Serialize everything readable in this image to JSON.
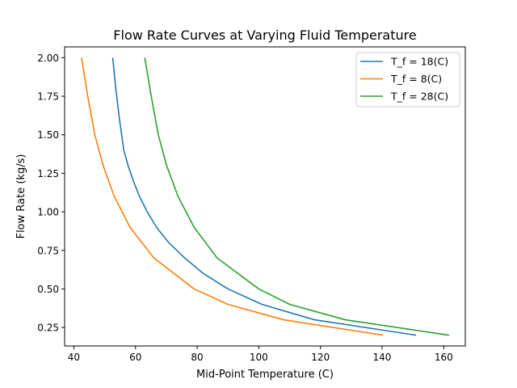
{
  "chart_data": {
    "type": "line",
    "title": "Flow Rate Curves at Varying Fluid Temperature",
    "xlabel": "Mid-Point Temperature (C)",
    "ylabel": "Flow Rate (kg/s)",
    "xlim": [
      37,
      167
    ],
    "ylim": [
      0.13,
      2.07
    ],
    "xticks": [
      40,
      60,
      80,
      100,
      120,
      140,
      160
    ],
    "xtick_labels": [
      "40",
      "60",
      "80",
      "100",
      "120",
      "140",
      "160"
    ],
    "yticks": [
      0.25,
      0.5,
      0.75,
      1.0,
      1.25,
      1.5,
      1.75,
      2.0
    ],
    "ytick_labels": [
      "0.25",
      "0.50",
      "0.75",
      "1.00",
      "1.25",
      "1.50",
      "1.75",
      "2.00"
    ],
    "grid": false,
    "legend_position": "upper right",
    "series": [
      {
        "name": "T_f = 18(C)",
        "color": "#1f77b4",
        "x": [
          52.6,
          53.6,
          54.8,
          56.2,
          57.6,
          59.3,
          61.3,
          63.8,
          66.8,
          70.8,
          76.0,
          82.0,
          90.0,
          101.0,
          118.0,
          151.0
        ],
        "y": [
          2.0,
          1.8,
          1.6,
          1.4,
          1.3,
          1.2,
          1.1,
          1.0,
          0.9,
          0.8,
          0.7,
          0.6,
          0.5,
          0.4,
          0.3,
          0.2
        ]
      },
      {
        "name": "T_f = 8(C)",
        "color": "#ff7f0e",
        "x": [
          42.5,
          44.5,
          46.8,
          49.5,
          53.1,
          58.2,
          66.0,
          79.0,
          90.0,
          108.0,
          140.3
        ],
        "y": [
          2.0,
          1.75,
          1.5,
          1.3,
          1.1,
          0.9,
          0.7,
          0.5,
          0.4,
          0.3,
          0.2
        ]
      },
      {
        "name": "T_f = 28(C)",
        "color": "#2ca02c",
        "x": [
          63.0,
          65.1,
          67.4,
          70.1,
          73.8,
          79.0,
          86.5,
          100.0,
          110.0,
          128.0,
          161.7
        ],
        "y": [
          2.0,
          1.75,
          1.5,
          1.3,
          1.1,
          0.9,
          0.7,
          0.5,
          0.4,
          0.3,
          0.2
        ]
      }
    ]
  }
}
